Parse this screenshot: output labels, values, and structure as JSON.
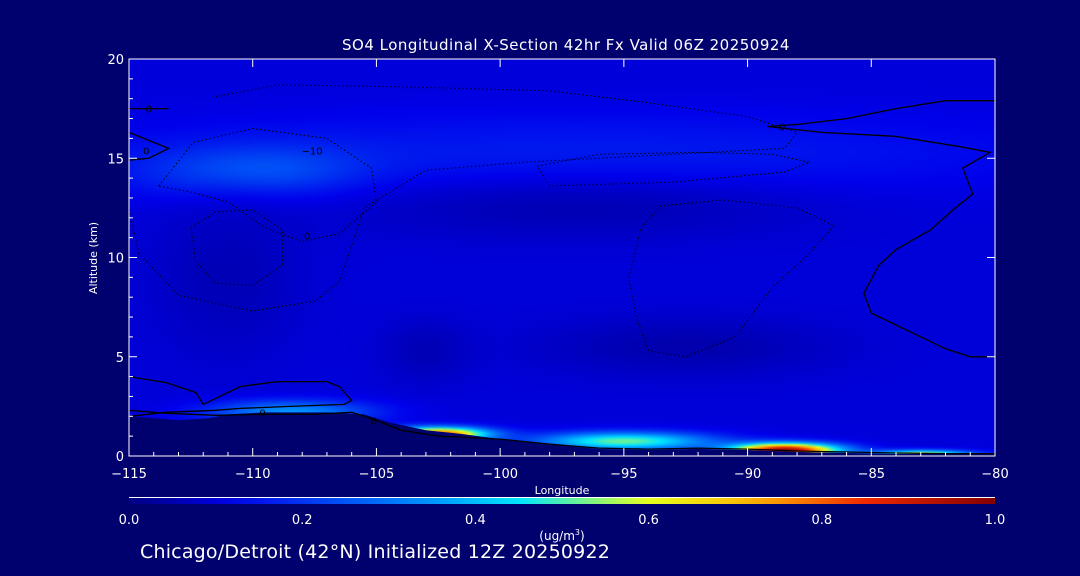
{
  "chart_data": {
    "type": "heatmap",
    "title": "SO4 Longitudinal X-Section 42hr  Fx Valid 06Z 20250924",
    "xlabel": "Longitude",
    "ylabel": "Altitude (km)",
    "xlim": [
      -115,
      -80
    ],
    "ylim": [
      0,
      20
    ],
    "x_ticks": [
      -115,
      -110,
      -105,
      -100,
      -95,
      -90,
      -85,
      -80
    ],
    "x_tick_labels": [
      "−115",
      "−110",
      "−105",
      "−100",
      "−95",
      "−90",
      "−85",
      "−80"
    ],
    "y_ticks": [
      0,
      5,
      10,
      15,
      20
    ],
    "y_tick_labels": [
      "0",
      "5",
      "10",
      "15",
      "20"
    ],
    "colorbar": {
      "label": "(ug/m",
      "label_sup": "3",
      "label_end": ")",
      "min": 0.0,
      "max": 1.0,
      "ticks": [
        0.0,
        0.2,
        0.4,
        0.6,
        0.8,
        1.0
      ],
      "tick_labels": [
        "0.0",
        "0.2",
        "0.4",
        "0.6",
        "0.8",
        "1.0"
      ]
    },
    "background_value": 0.1,
    "features": [
      {
        "name": "upper-band",
        "lon": -97,
        "alt": 15.2,
        "sx": 20,
        "sy": 2.2,
        "value": 0.16
      },
      {
        "name": "upper-left-plume",
        "lon": -110,
        "alt": 14.3,
        "sx": 4.2,
        "sy": 1.3,
        "value": 0.28
      },
      {
        "name": "mid-band",
        "lon": -97,
        "alt": 12.4,
        "sx": 10,
        "sy": 1.6,
        "value": 0.06
      },
      {
        "name": "left-column",
        "lon": -111,
        "alt": 9.0,
        "sx": 3,
        "sy": 4,
        "value": 0.06
      },
      {
        "name": "mid-blob-west",
        "lon": -103,
        "alt": 5.3,
        "sx": 1.8,
        "sy": 1.6,
        "value": 0.06
      },
      {
        "name": "mid-blob-east",
        "lon": -92.5,
        "alt": 5.5,
        "sx": 6,
        "sy": 1.5,
        "value": 0.05
      },
      {
        "name": "boundary-layer-west",
        "lon": -108.5,
        "alt": 2.2,
        "sx": 3.2,
        "sy": 0.6,
        "value": 0.35
      },
      {
        "name": "plume-104w",
        "lon": -102.5,
        "alt": 1.1,
        "sx": 2,
        "sy": 0.35,
        "value": 0.85
      },
      {
        "name": "plume-95w",
        "lon": -95,
        "alt": 0.75,
        "sx": 3.5,
        "sy": 0.45,
        "value": 0.52
      },
      {
        "name": "plume-89w",
        "lon": -88.5,
        "alt": 0.3,
        "sx": 2.2,
        "sy": 0.35,
        "value": 0.98
      },
      {
        "name": "plume-83w",
        "lon": -83,
        "alt": 0.1,
        "sx": 2,
        "sy": 0.2,
        "value": 0.6
      }
    ],
    "terrain": [
      [
        -115,
        2.0
      ],
      [
        -114,
        1.9
      ],
      [
        -113,
        1.8
      ],
      [
        -111.8,
        1.9
      ],
      [
        -111,
        2.1
      ],
      [
        -109.5,
        2.2
      ],
      [
        -107,
        2.2
      ],
      [
        -105.5,
        2.1
      ],
      [
        -104.5,
        1.7
      ],
      [
        -103,
        1.3
      ],
      [
        -101.5,
        1.1
      ],
      [
        -100,
        0.85
      ],
      [
        -98,
        0.6
      ],
      [
        -96,
        0.35
      ],
      [
        -94,
        0.3
      ],
      [
        -92,
        0.35
      ],
      [
        -90,
        0.3
      ],
      [
        -88,
        0.2
      ],
      [
        -86,
        0.15
      ],
      [
        -84,
        0.1
      ],
      [
        -82,
        0.1
      ],
      [
        -80,
        0.1
      ]
    ],
    "contours": [
      {
        "value": "0",
        "style": "solid",
        "label_at": [
          -114.2,
          17.5
        ],
        "points": [
          [
            -115,
            17.5
          ],
          [
            -113.4,
            17.5
          ]
        ]
      },
      {
        "value": "0",
        "style": "solid",
        "label_at": [
          -114.3,
          15.4
        ],
        "points": [
          [
            -115,
            16.3
          ],
          [
            -114.2,
            15.9
          ],
          [
            -113.4,
            15.5
          ],
          [
            -114.2,
            15.0
          ],
          [
            -115,
            14.9
          ]
        ]
      },
      {
        "value": "0",
        "style": "solid",
        "label_at": [
          -88.6,
          16.6
        ],
        "points": [
          [
            -80,
            17.9
          ],
          [
            -82,
            17.9
          ],
          [
            -84,
            17.5
          ],
          [
            -86,
            17.0
          ],
          [
            -88,
            16.7
          ],
          [
            -89.2,
            16.6
          ],
          [
            -87,
            16.3
          ],
          [
            -84,
            16.1
          ],
          [
            -81.5,
            15.6
          ],
          [
            -80.2,
            15.3
          ],
          [
            -81.3,
            14.5
          ],
          [
            -80.9,
            13.2
          ],
          [
            -81.6,
            12.5
          ],
          [
            -82.6,
            11.4
          ],
          [
            -84.0,
            10.4
          ],
          [
            -84.7,
            9.6
          ],
          [
            -85.3,
            8.2
          ],
          [
            -85.0,
            7.2
          ],
          [
            -83.5,
            6.3
          ],
          [
            -82.0,
            5.4
          ],
          [
            -81.0,
            5.0
          ],
          [
            -80,
            5.0
          ]
        ]
      },
      {
        "value": "0",
        "style": "solid",
        "label_at": [
          -109.6,
          2.2
        ],
        "points": [
          [
            -115,
            4.0
          ],
          [
            -113.5,
            3.7
          ],
          [
            -112.3,
            3.2
          ],
          [
            -112.0,
            2.6
          ],
          [
            -110.5,
            3.5
          ],
          [
            -109.0,
            3.75
          ],
          [
            -107.0,
            3.75
          ],
          [
            -106.5,
            3.5
          ],
          [
            -106.0,
            2.8
          ],
          [
            -106.3,
            2.6
          ],
          [
            -108.5,
            2.5
          ],
          [
            -110.5,
            2.4
          ],
          [
            -111.5,
            2.3
          ],
          [
            -113.5,
            2.2
          ],
          [
            -115,
            2.0
          ]
        ]
      },
      {
        "value": "0",
        "style": "solid",
        "label_at": [
          -105.1,
          1.8
        ],
        "points": [
          [
            -115,
            2.3
          ],
          [
            -113.5,
            2.15
          ],
          [
            -111.5,
            2.05
          ],
          [
            -109.5,
            2.1
          ],
          [
            -107.5,
            2.1
          ],
          [
            -106,
            2.2
          ],
          [
            -105,
            1.8
          ],
          [
            -104,
            1.3
          ],
          [
            -102.5,
            1.0
          ],
          [
            -100,
            0.85
          ],
          [
            -98,
            0.6
          ],
          [
            -96,
            0.4
          ],
          [
            -94,
            0.35
          ],
          [
            -92,
            0.4
          ],
          [
            -90,
            0.35
          ],
          [
            -88,
            0.25
          ],
          [
            -86,
            0.2
          ],
          [
            -84,
            0.15
          ],
          [
            -82,
            0.12
          ],
          [
            -80,
            0.12
          ]
        ]
      },
      {
        "value": "−10",
        "style": "dotted",
        "label_at": [
          -107.6,
          15.4
        ],
        "points": [
          [
            -113.8,
            13.6
          ],
          [
            -112.4,
            15.8
          ],
          [
            -110,
            16.5
          ],
          [
            -107,
            16.0
          ],
          [
            -105.2,
            14.5
          ],
          [
            -105.0,
            12.8
          ],
          [
            -106.5,
            11.2
          ],
          [
            -108.0,
            10.8
          ],
          [
            -109.5,
            11.5
          ],
          [
            -111.0,
            12.8
          ],
          [
            -112.5,
            13.3
          ],
          [
            -113.8,
            13.6
          ]
        ]
      },
      {
        "value": "0",
        "style": "dotted",
        "label_at": [
          -107.8,
          11.1
        ],
        "points": [
          [
            -111.5,
            18.1
          ],
          [
            -109,
            18.7
          ],
          [
            -104,
            18.6
          ],
          [
            -98,
            18.4
          ],
          [
            -94,
            17.8
          ],
          [
            -90,
            17.1
          ],
          [
            -88,
            16.3
          ],
          [
            -88.5,
            15.5
          ],
          [
            -93,
            15.2
          ],
          [
            -99,
            14.8
          ],
          [
            -103,
            14.4
          ],
          [
            -105.5,
            12.5
          ],
          [
            -106,
            10.6
          ],
          [
            -106.5,
            8.8
          ],
          [
            -107.5,
            7.8
          ],
          [
            -110,
            7.3
          ],
          [
            -113,
            8.1
          ],
          [
            -114.6,
            10.2
          ],
          [
            -115,
            12.5
          ]
        ]
      },
      {
        "value": "",
        "style": "dotted",
        "label_at": null,
        "points": [
          [
            -98.5,
            14.6
          ],
          [
            -96,
            15.2
          ],
          [
            -92,
            15.3
          ],
          [
            -89,
            15.2
          ],
          [
            -87.5,
            14.8
          ],
          [
            -88.5,
            14.3
          ],
          [
            -93,
            13.8
          ],
          [
            -98,
            13.6
          ],
          [
            -98.5,
            14.6
          ]
        ]
      },
      {
        "value": "",
        "style": "dotted",
        "label_at": null,
        "points": [
          [
            -94.3,
            11.5
          ],
          [
            -93.5,
            12.6
          ],
          [
            -91,
            12.9
          ],
          [
            -88,
            12.5
          ],
          [
            -86.5,
            11.6
          ],
          [
            -87.5,
            10.2
          ],
          [
            -89,
            8.5
          ],
          [
            -90.5,
            6.0
          ],
          [
            -92.5,
            5.0
          ],
          [
            -94,
            5.3
          ],
          [
            -94.5,
            7.0
          ],
          [
            -94.8,
            9.0
          ],
          [
            -94.3,
            11.5
          ]
        ]
      },
      {
        "value": "",
        "style": "dotted",
        "label_at": null,
        "points": [
          [
            -112.5,
            11.5
          ],
          [
            -111.5,
            12.3
          ],
          [
            -110,
            12.4
          ],
          [
            -108.8,
            11.4
          ],
          [
            -108.8,
            9.6
          ],
          [
            -110,
            8.6
          ],
          [
            -111.5,
            8.7
          ],
          [
            -112.3,
            9.8
          ],
          [
            -112.5,
            11.5
          ]
        ]
      }
    ]
  },
  "footer": {
    "text": "Chicago/Detroit (42°N) Initialized 12Z 20250922"
  }
}
